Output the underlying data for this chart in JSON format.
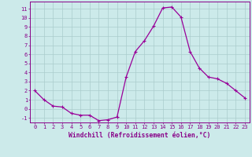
{
  "x": [
    0,
    1,
    2,
    3,
    4,
    5,
    6,
    7,
    8,
    9,
    10,
    11,
    12,
    13,
    14,
    15,
    16,
    17,
    18,
    19,
    20,
    21,
    22,
    23
  ],
  "y": [
    2,
    1,
    0.3,
    0.2,
    -0.5,
    -0.7,
    -0.7,
    -1.3,
    -1.2,
    -0.9,
    3.5,
    6.3,
    7.5,
    9.1,
    11.1,
    11.2,
    10.1,
    6.3,
    4.5,
    3.5,
    3.3,
    2.8,
    2.0,
    1.2
  ],
  "line_color": "#990099",
  "marker": "+",
  "marker_size": 3,
  "marker_lw": 0.8,
  "line_width": 0.9,
  "bg_color": "#cceaea",
  "grid_color": "#aacccc",
  "xlabel": "Windchill (Refroidissement éolien,°C)",
  "xlim": [
    -0.5,
    23.5
  ],
  "ylim": [
    -1.5,
    11.8
  ],
  "yticks": [
    -1,
    0,
    1,
    2,
    3,
    4,
    5,
    6,
    7,
    8,
    9,
    10,
    11
  ],
  "xticks": [
    0,
    1,
    2,
    3,
    4,
    5,
    6,
    7,
    8,
    9,
    10,
    11,
    12,
    13,
    14,
    15,
    16,
    17,
    18,
    19,
    20,
    21,
    22,
    23
  ],
  "tick_color": "#880088",
  "label_color": "#880088",
  "label_fontsize": 5.8,
  "tick_fontsize": 5.0,
  "spine_color": "#880088"
}
